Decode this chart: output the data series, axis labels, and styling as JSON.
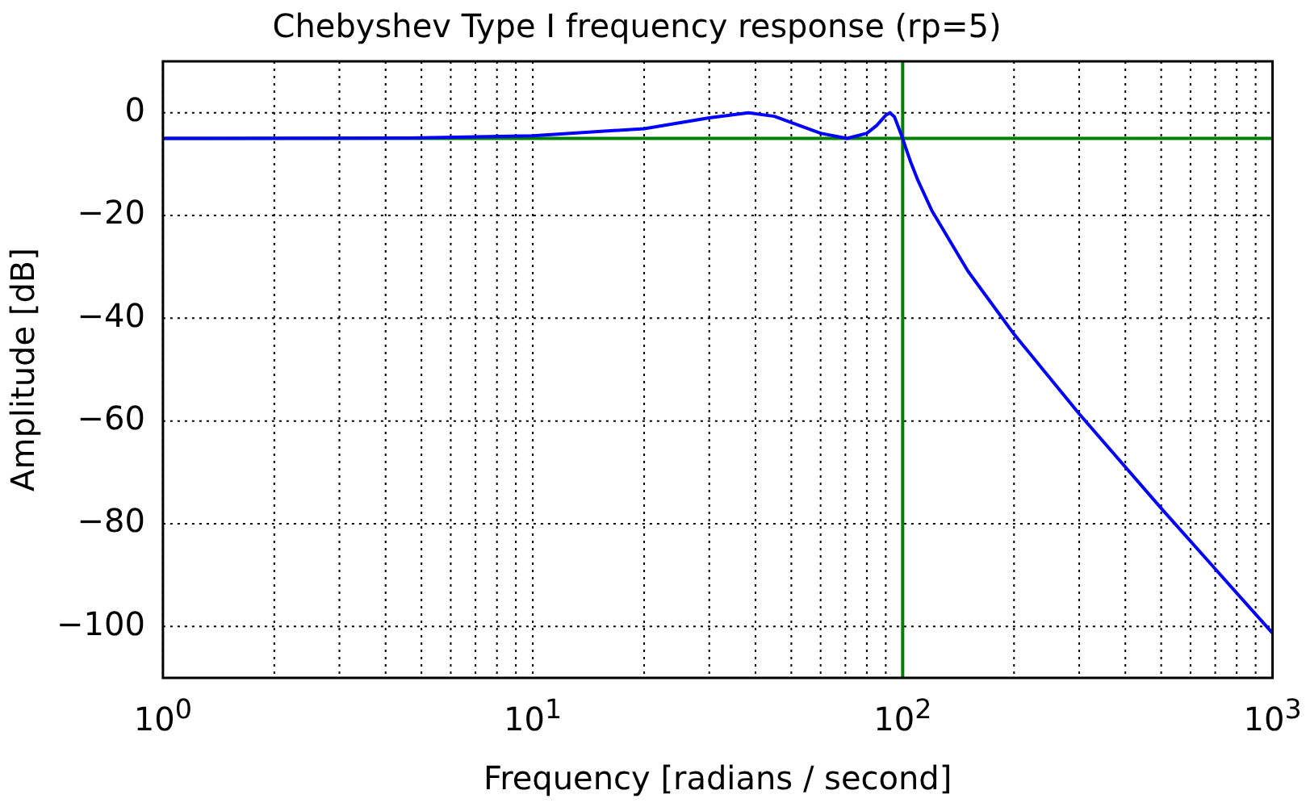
{
  "chart_data": {
    "type": "line",
    "title": "Chebyshev Type I frequency response (rp=5)",
    "xlabel": "Frequency [radians / second]",
    "ylabel": "Amplitude [dB]",
    "series": [
      {
        "color": "#0000ff",
        "x": [
          1,
          5,
          10,
          20,
          30,
          38.3,
          45,
          50,
          60,
          70.7,
          80,
          85,
          90,
          92.4,
          95,
          100,
          102,
          105,
          110,
          120,
          150,
          200,
          300,
          500,
          700,
          1000
        ],
        "values": [
          -5,
          -4.9,
          -4.5,
          -3.1,
          -1,
          0,
          -0.7,
          -1.9,
          -4,
          -5,
          -4,
          -2.5,
          -0.5,
          0,
          -0.8,
          -5,
          -6.9,
          -9.5,
          -13.2,
          -19.1,
          -30.8,
          -43.1,
          -58.6,
          -77,
          -88.8,
          -101.3
        ]
      }
    ],
    "xlim": [
      1,
      1000
    ],
    "ylim": [
      -110,
      10
    ],
    "log": "x",
    "xticks": [
      {
        "value": 1,
        "label": "10$^{0}$"
      },
      {
        "value": 2,
        "label": null
      },
      {
        "value": 3,
        "label": null
      },
      {
        "value": 4,
        "label": null
      },
      {
        "value": 5,
        "label": null
      },
      {
        "value": 6,
        "label": null
      },
      {
        "value": 7,
        "label": null
      },
      {
        "value": 8,
        "label": null
      },
      {
        "value": 9,
        "label": null
      },
      {
        "value": 10,
        "label": "10$^{1}$"
      },
      {
        "value": 20,
        "label": null
      },
      {
        "value": 30,
        "label": null
      },
      {
        "value": 40,
        "label": null
      },
      {
        "value": 50,
        "label": null
      },
      {
        "value": 60,
        "label": null
      },
      {
        "value": 70,
        "label": null
      },
      {
        "value": 80,
        "label": null
      },
      {
        "value": 90,
        "label": null
      },
      {
        "value": 100,
        "label": "10$^{2}$"
      },
      {
        "value": 200,
        "label": null
      },
      {
        "value": 300,
        "label": null
      },
      {
        "value": 400,
        "label": null
      },
      {
        "value": 500,
        "label": null
      },
      {
        "value": 600,
        "label": null
      },
      {
        "value": 700,
        "label": null
      },
      {
        "value": 800,
        "label": null
      },
      {
        "value": 900,
        "label": null
      },
      {
        "value": 1000,
        "label": "10$^{3}$"
      }
    ],
    "yticks": [
      {
        "value": 0,
        "label": "0"
      },
      {
        "value": -20,
        "label": "−20"
      },
      {
        "value": -40,
        "label": "−40"
      },
      {
        "value": -60,
        "label": "−60"
      },
      {
        "value": -80,
        "label": "−80"
      },
      {
        "value": -100,
        "label": "−100"
      }
    ],
    "ref_lines": [
      {
        "axis": "x",
        "value": 100,
        "color": "#008000"
      },
      {
        "axis": "y",
        "value": -5,
        "color": "#008000"
      }
    ],
    "grid": true,
    "legend": false,
    "line_style": "solid",
    "marker": "none"
  }
}
